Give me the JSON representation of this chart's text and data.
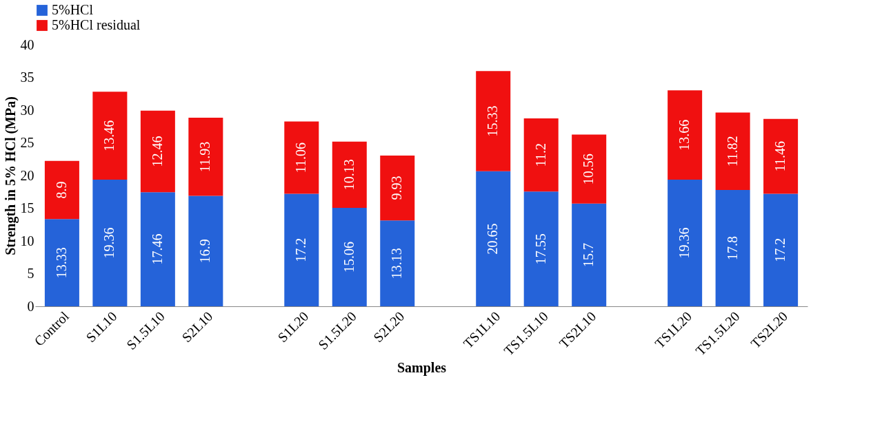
{
  "chart_data": {
    "type": "bar",
    "stacked": true,
    "xlabel": "Samples",
    "ylabel": "Strength in 5% HCl (MPa)",
    "categories": [
      "Control",
      "S1L10",
      "S1.5L10",
      "S2L10",
      null,
      "S1L20",
      "S1.5L20",
      "S2L20",
      null,
      "TS1L10",
      "TS1.5L10",
      "TS2L10",
      null,
      "TS1L20",
      "TS1.5L20",
      "TS2L20"
    ],
    "series": [
      {
        "name": "5%HCl",
        "color": "#2563d9",
        "values": [
          13.33,
          19.36,
          17.46,
          16.9,
          null,
          17.2,
          15.06,
          13.13,
          null,
          20.65,
          17.55,
          15.7,
          null,
          19.36,
          17.8,
          17.2
        ]
      },
      {
        "name": "5%HCl residual",
        "color": "#f01010",
        "values": [
          8.9,
          13.46,
          12.46,
          11.93,
          null,
          11.06,
          10.13,
          9.93,
          null,
          15.33,
          11.2,
          10.56,
          null,
          13.66,
          11.82,
          11.46
        ]
      }
    ],
    "ylim": [
      0,
      40
    ],
    "yticks": [
      0,
      5,
      10,
      15,
      20,
      25,
      30,
      35,
      40
    ],
    "grid": false,
    "legend": "top",
    "data_labels": true
  }
}
